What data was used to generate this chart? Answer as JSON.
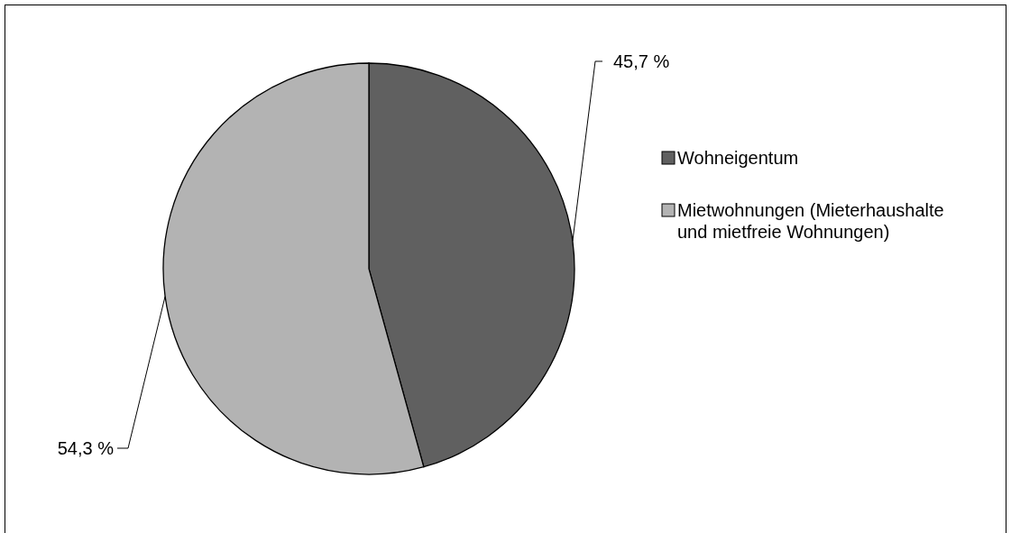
{
  "chart_data": {
    "type": "pie",
    "categories": [
      "Wohneigentum",
      "Mietwohnungen (Mieterhaushalte und mietfreie Wohnungen)"
    ],
    "values": [
      45.7,
      54.3
    ],
    "colors": [
      "#606060",
      "#b3b3b3"
    ],
    "value_labels": [
      "45,7 %",
      "54,3 %"
    ],
    "legend": "right"
  }
}
